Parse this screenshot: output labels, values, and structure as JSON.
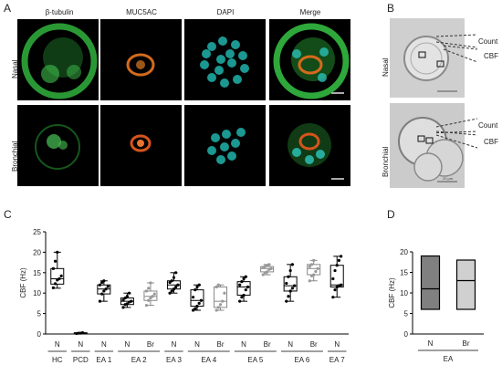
{
  "figure": {
    "panels": {
      "A": "A",
      "B": "B",
      "C": "C",
      "D": "D"
    },
    "panel_a": {
      "columns": [
        "β-tubulin",
        "MUC5AC",
        "DAPI",
        "Merge"
      ],
      "rows": [
        "Nasal",
        "Bronchial"
      ]
    },
    "panel_b": {
      "rows": [
        "Nasal",
        "Bronchial"
      ],
      "annotations": [
        "Count",
        "CBF"
      ],
      "scale_label": "20 μm"
    }
  },
  "chart_data": [
    {
      "type": "box",
      "panel": "C",
      "ylabel": "CBF (Hz)",
      "ylim": [
        0,
        25
      ],
      "yticks": [
        0,
        5,
        10,
        15,
        20,
        25
      ],
      "boxes": [
        {
          "label": "N",
          "group": "HC",
          "whisker_low": 11.2,
          "q1": 12.2,
          "median": 13.5,
          "q3": 16.0,
          "whisker_high": 20.0,
          "points": [
            11.3,
            12.3,
            13.2,
            13.5,
            14.2,
            16.0,
            17.8,
            20.0
          ],
          "shade": "white"
        },
        {
          "label": "N",
          "group": "PCD",
          "whisker_low": 0.1,
          "q1": 0.1,
          "median": 0.2,
          "q3": 0.3,
          "whisker_high": 0.3,
          "points": [
            0.1,
            0.2,
            0.2,
            0.3
          ],
          "shade": "white"
        },
        {
          "label": "N",
          "group": "EA 1",
          "whisker_low": 8.0,
          "q1": 9.8,
          "median": 11.0,
          "q3": 12.0,
          "whisker_high": 13.0,
          "points": [
            8.0,
            9.8,
            10.5,
            11.0,
            11.6,
            12.0,
            12.6,
            13.0
          ],
          "shade": "white"
        },
        {
          "label": "N",
          "group": "EA 2",
          "whisker_low": 6.5,
          "q1": 7.2,
          "median": 8.0,
          "q3": 8.8,
          "whisker_high": 10.0,
          "points": [
            6.5,
            7.2,
            7.4,
            7.8,
            8.0,
            8.3,
            8.8,
            9.2,
            10.0
          ],
          "shade": "white"
        },
        {
          "label": "Br",
          "group": "EA 2",
          "whisker_low": 7.0,
          "q1": 8.2,
          "median": 9.2,
          "q3": 10.5,
          "whisker_high": 12.5,
          "points": [
            7.0,
            8.2,
            8.8,
            9.2,
            9.8,
            10.5,
            11.2,
            12.5
          ],
          "shade": "light"
        },
        {
          "label": "N",
          "group": "EA 3",
          "whisker_low": 10.0,
          "q1": 11.0,
          "median": 12.0,
          "q3": 13.0,
          "whisker_high": 15.0,
          "points": [
            10.0,
            10.5,
            11.0,
            11.5,
            12.0,
            12.6,
            13.0,
            13.8,
            15.0
          ],
          "shade": "white"
        },
        {
          "label": "N",
          "group": "EA 4",
          "whisker_low": 5.8,
          "q1": 6.8,
          "median": 8.2,
          "q3": 10.8,
          "whisker_high": 12.0,
          "points": [
            5.8,
            6.2,
            6.8,
            7.5,
            8.2,
            9.0,
            10.8,
            11.5,
            12.0
          ],
          "shade": "white"
        },
        {
          "label": "Br",
          "group": "EA 4",
          "whisker_low": 5.8,
          "q1": 6.5,
          "median": 8.0,
          "q3": 11.5,
          "whisker_high": 12.0,
          "points": [
            5.8,
            6.5,
            7.2,
            8.0,
            10.0,
            11.5,
            12.0
          ],
          "shade": "light"
        },
        {
          "label": "N",
          "group": "EA 5",
          "whisker_low": 8.0,
          "q1": 9.5,
          "median": 11.5,
          "q3": 12.8,
          "whisker_high": 14.0,
          "points": [
            8.0,
            9.0,
            9.5,
            10.8,
            11.5,
            12.0,
            12.8,
            13.5,
            14.0
          ],
          "shade": "white"
        },
        {
          "label": "Br",
          "group": "EA 5",
          "whisker_low": 14.5,
          "q1": 15.2,
          "median": 16.0,
          "q3": 16.5,
          "whisker_high": 17.0,
          "points": [
            14.5,
            15.0,
            15.2,
            15.8,
            16.0,
            16.3,
            16.5,
            16.8,
            17.0
          ],
          "shade": "light"
        },
        {
          "label": "N",
          "group": "EA 6",
          "whisker_low": 8.0,
          "q1": 10.5,
          "median": 11.8,
          "q3": 14.0,
          "whisker_high": 17.0,
          "points": [
            8.0,
            9.2,
            10.5,
            11.2,
            11.8,
            12.4,
            14.0,
            15.5,
            17.0
          ],
          "shade": "white"
        },
        {
          "label": "Br",
          "group": "EA 6",
          "whisker_low": 13.0,
          "q1": 14.5,
          "median": 16.0,
          "q3": 17.0,
          "whisker_high": 18.0,
          "points": [
            13.0,
            14.2,
            14.5,
            15.3,
            16.0,
            16.5,
            17.0,
            18.0
          ],
          "shade": "light"
        },
        {
          "label": "N",
          "group": "EA 7",
          "whisker_low": 9.0,
          "q1": 11.5,
          "median": 12.0,
          "q3": 16.8,
          "whisker_high": 19.0,
          "points": [
            9.0,
            10.8,
            11.5,
            11.8,
            12.0,
            13.5,
            15.5,
            16.8,
            18.0,
            19.0
          ],
          "shade": "white"
        }
      ],
      "groups": [
        "HC",
        "PCD",
        "EA 1",
        "EA 2",
        "EA 3",
        "EA 4",
        "EA 5",
        "EA 6",
        "EA 7"
      ]
    },
    {
      "type": "floating_bar",
      "panel": "D",
      "ylabel": "CBF (Hz)",
      "ylim": [
        0,
        20
      ],
      "yticks": [
        0,
        5,
        10,
        15,
        20
      ],
      "bars": [
        {
          "label": "N",
          "min": 6.0,
          "median": 11.0,
          "max": 19.0,
          "color": "#808080"
        },
        {
          "label": "Br",
          "min": 6.0,
          "median": 13.0,
          "max": 18.0,
          "color": "#d0d0d0"
        }
      ],
      "group": "EA"
    }
  ]
}
